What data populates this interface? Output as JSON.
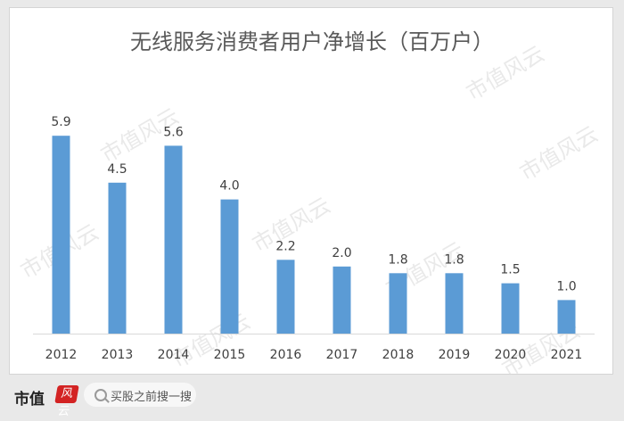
{
  "chart_data": {
    "type": "bar",
    "title": "无线服务消费者用户净增长（百万户）",
    "categories": [
      "2012",
      "2013",
      "2014",
      "2015",
      "2016",
      "2017",
      "2018",
      "2019",
      "2020",
      "2021"
    ],
    "values": [
      5.9,
      4.5,
      5.6,
      4.0,
      2.2,
      2.0,
      1.8,
      1.8,
      1.5,
      1.0
    ],
    "value_labels": [
      "5.9",
      "4.5",
      "5.6",
      "4.0",
      "2.2",
      "2.0",
      "1.8",
      "1.8",
      "1.5",
      "1.0"
    ],
    "ylim": [
      0,
      6.5
    ],
    "grid": false,
    "legend": "none",
    "bar_color": "#5b9bd5",
    "axis_color": "#d9d9d9"
  },
  "watermark": "市值风云",
  "footer": {
    "brand": "市值",
    "brand_logo": "风云",
    "search_text": "买股之前搜一搜",
    "search_icon": "search-icon"
  }
}
